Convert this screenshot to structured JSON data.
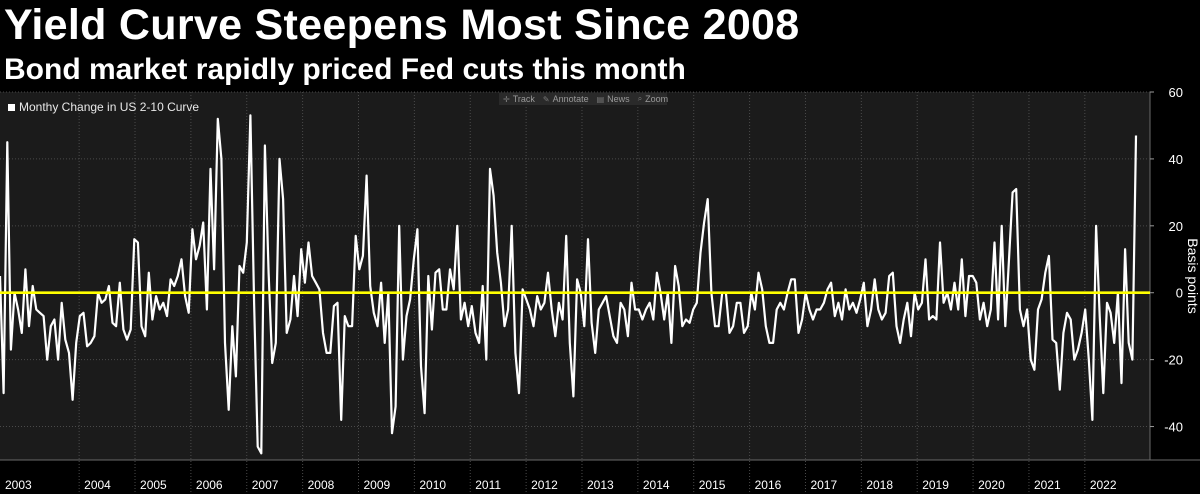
{
  "header": {
    "title": "Yield Curve Steepens Most Since 2008",
    "subtitle": "Bond market rapidly priced Fed cuts this month"
  },
  "toolbar": {
    "items": [
      {
        "label": "Track",
        "icon": "crosshair-icon"
      },
      {
        "label": "Annotate",
        "icon": "pencil-icon"
      },
      {
        "label": "News",
        "icon": "news-icon"
      },
      {
        "label": "Zoom",
        "icon": "magnifier-icon"
      }
    ]
  },
  "colors": {
    "background": "#000000",
    "plot_background": "#1b1b1b",
    "series": "#ffffff",
    "zero_line": "#ffff00",
    "grid": "#4a4a4a",
    "axis_text": "#ffffff"
  },
  "chart_data": {
    "type": "line",
    "title": "Yield Curve Steepens Most Since 2008",
    "subtitle": "Bond market rapidly priced Fed cuts this month",
    "legend": {
      "entries": [
        "Monthy Change in US 2-10 Curve"
      ],
      "placement": "top-left"
    },
    "ylabel": "Basis points",
    "ylim": [
      -50,
      60
    ],
    "yticks": [
      -40,
      -20,
      0,
      20,
      40,
      60
    ],
    "y_axis_side": "right",
    "grid": true,
    "reference_line": {
      "y": 0,
      "color": "#ffff00"
    },
    "x_tick_labels": [
      "2003",
      "2004",
      "2005",
      "2006",
      "2007",
      "2008",
      "2009",
      "2010",
      "2011",
      "2012",
      "2013",
      "2014",
      "2015",
      "2016",
      "2017",
      "2018",
      "2019",
      "2020",
      "2021",
      "2022"
    ],
    "x_start": "2002-08",
    "x_end": "2023-03",
    "series": [
      {
        "name": "Monthy Change in US 2-10 Curve",
        "color": "#ffffff",
        "values": [
          5,
          -30,
          45,
          -17,
          0,
          -5,
          -12,
          7,
          -10,
          2,
          -5,
          -6,
          -7,
          -20,
          -10,
          -8,
          -20,
          -3,
          -14,
          -18,
          -32,
          -15,
          -7,
          -6,
          -16,
          -15,
          -13,
          0,
          -3,
          -2,
          2,
          -9,
          -10,
          3,
          -11,
          -14,
          -11,
          16,
          15,
          -10,
          -13,
          6,
          -8,
          -1,
          -5,
          -3,
          -7,
          4,
          2,
          5,
          10,
          -1,
          -6,
          19,
          10,
          14,
          21,
          -5,
          37,
          7,
          52,
          40,
          -15,
          -35,
          -10,
          -25,
          8,
          6,
          15,
          53,
          -3,
          -46,
          -48,
          44,
          6,
          -21,
          -15,
          40,
          28,
          -12,
          -8,
          5,
          -7,
          13,
          3,
          15,
          5,
          3,
          1,
          -12,
          -18,
          -18,
          -4,
          -3,
          -38,
          -7,
          -10,
          -10,
          17,
          7,
          11,
          35,
          2,
          -6,
          -10,
          3,
          -15,
          0,
          -42,
          -34,
          20,
          -20,
          -7,
          -2,
          10,
          19,
          -22,
          -36,
          5,
          -11,
          6,
          7,
          -5,
          -5,
          7,
          1,
          20,
          -8,
          -3,
          -10,
          -4,
          -12,
          -15,
          2,
          -20,
          37,
          29,
          12,
          3,
          -10,
          -5,
          20,
          -18,
          -30,
          1,
          -2,
          -5,
          -10,
          -1,
          -5,
          -3,
          6,
          -5,
          -13,
          -3,
          -8,
          17,
          -15,
          -31,
          4,
          0,
          -10,
          16,
          -9,
          -18,
          -5,
          -3,
          -1,
          -7,
          -13,
          -15,
          -3,
          -5,
          -13,
          3,
          -5,
          -5,
          -8,
          -5,
          -3,
          -8,
          6,
          0,
          -8,
          0,
          -15,
          8,
          2,
          -10,
          -8,
          -9,
          -5,
          -3,
          12,
          21,
          28,
          0,
          -10,
          -10,
          0,
          0,
          -12,
          -10,
          -3,
          -3,
          -12,
          -10,
          0,
          -5,
          6,
          1,
          -10,
          -15,
          -15,
          -5,
          -3,
          -5,
          0,
          4,
          4,
          -12,
          -8,
          0,
          -5,
          -8,
          -5,
          -5,
          -3,
          1,
          3,
          -7,
          -3,
          -8,
          1,
          -5,
          -3,
          -6,
          -2,
          3,
          -10,
          -5,
          4,
          -5,
          -8,
          -6,
          5,
          6,
          -10,
          -15,
          -8,
          -3,
          -13,
          0,
          -5,
          -3,
          10,
          -8,
          -7,
          -8,
          15,
          -3,
          0,
          -5,
          3,
          -5,
          10,
          -7,
          5,
          5,
          3,
          -8,
          -3,
          -10,
          -5,
          15,
          -8,
          20,
          -10,
          10,
          30,
          31,
          -5,
          -10,
          -5,
          -20,
          -23,
          -5,
          -2,
          6,
          11,
          -14,
          -15,
          -29,
          -12,
          -6,
          -8,
          -20,
          -17,
          -12,
          -5,
          -20,
          -38,
          20,
          -7,
          -30,
          -3,
          -6,
          -15,
          0,
          -27,
          13,
          -15,
          -20,
          47
        ]
      }
    ]
  }
}
